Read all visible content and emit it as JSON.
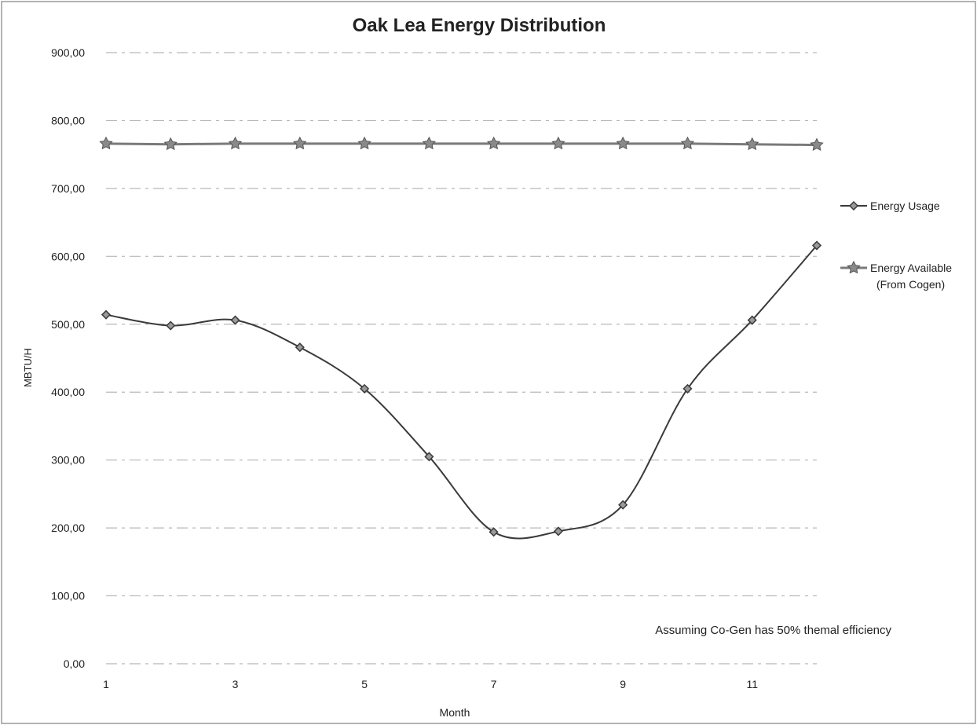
{
  "chart_data": {
    "type": "line",
    "title": "Oak Lea Energy Distribution",
    "xlabel": "Month",
    "ylabel": "MBTU/H",
    "x": [
      1,
      2,
      3,
      4,
      5,
      6,
      7,
      8,
      9,
      10,
      11,
      12
    ],
    "x_tick_labels": [
      "1",
      "3",
      "5",
      "7",
      "9",
      "11"
    ],
    "x_tick_values": [
      1,
      3,
      5,
      7,
      9,
      11
    ],
    "xlim": [
      1,
      12
    ],
    "ylim": [
      0,
      900
    ],
    "y_ticks": [
      0,
      100,
      200,
      300,
      400,
      500,
      600,
      700,
      800,
      900
    ],
    "y_tick_labels": [
      "0,00",
      "100,00",
      "200,00",
      "300,00",
      "400,00",
      "500,00",
      "600,00",
      "700,00",
      "800,00",
      "900,00"
    ],
    "grid": true,
    "legend_position": "right",
    "series": [
      {
        "name": "Energy Usage",
        "color": "#3a3a3a",
        "marker": "diamond",
        "smooth": true,
        "values": [
          514,
          498,
          506,
          466,
          405,
          305,
          194,
          195,
          234,
          405,
          506,
          616
        ]
      },
      {
        "name": "Energy Available (From Cogen)",
        "legend_lines": [
          "Energy Available",
          "(From Cogen)"
        ],
        "color": "#7a7a7a",
        "marker": "star",
        "smooth": false,
        "values": [
          766,
          765,
          766,
          766,
          766,
          766,
          766,
          766,
          766,
          766,
          765,
          764
        ]
      }
    ],
    "annotation": "Assuming Co-Gen has 50% themal efficiency"
  }
}
